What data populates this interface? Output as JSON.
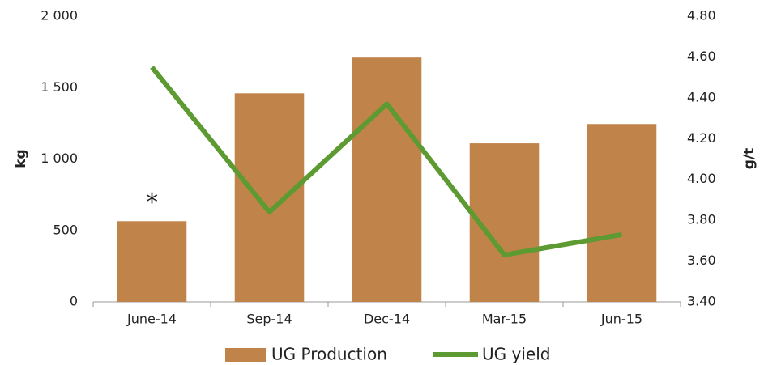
{
  "chart_data": {
    "type": "bar_line",
    "categories": [
      "June-14",
      "Sep-14",
      "Dec-14",
      "Mar-15",
      "Jun-15"
    ],
    "series": [
      {
        "name": "UG Production",
        "type": "bar",
        "color": "#c0834a",
        "values": [
          565,
          1460,
          1710,
          1110,
          1245
        ]
      },
      {
        "name": "UG yield",
        "type": "line",
        "axis": "y2",
        "color": "#5d9b32",
        "values": [
          4.55,
          3.84,
          4.37,
          3.63,
          3.73
        ]
      }
    ],
    "ylabel": "kg",
    "y2label": "g/t",
    "ylim": [
      0,
      2000
    ],
    "yticks": [
      0,
      500,
      {
        "value": 1000,
        "label": "1 000"
      },
      {
        "value": 1500,
        "label": "1 500"
      },
      {
        "value": 2000,
        "label": "2 000"
      }
    ],
    "y2lim": [
      3.4,
      4.8
    ],
    "y2ticks": [
      {
        "value": 3.4,
        "label": "3.40"
      },
      {
        "value": 3.6,
        "label": "3.60"
      },
      {
        "value": 3.8,
        "label": "3.80"
      },
      {
        "value": 4.0,
        "label": "4.00"
      },
      {
        "value": 4.2,
        "label": "4.20"
      },
      {
        "value": 4.4,
        "label": "4.40"
      },
      {
        "value": 4.6,
        "label": "4.60"
      },
      {
        "value": 4.8,
        "label": "4.80"
      }
    ],
    "annotations": [
      {
        "text": "*",
        "category": 0
      }
    ],
    "grid": false,
    "legend": "bottom"
  }
}
